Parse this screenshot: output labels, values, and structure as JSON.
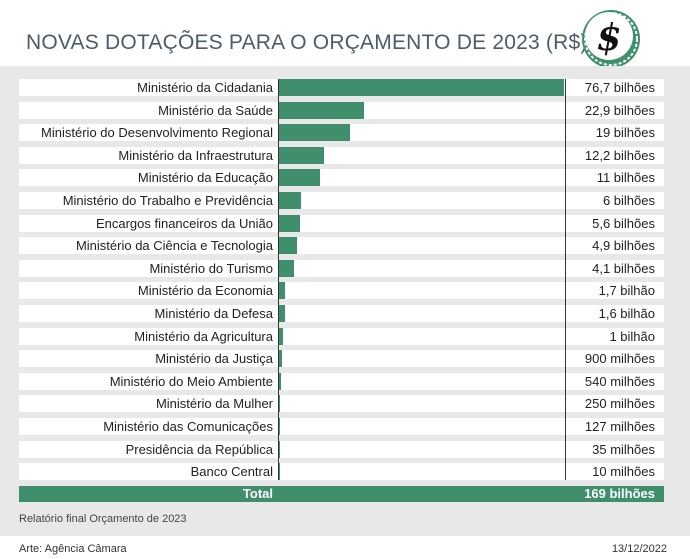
{
  "title": "NOVAS DOTAÇÕES PARA O ORÇAMENTO DE 2023 (R$)",
  "logo_glyph": "$",
  "colors": {
    "bar": "#3f8f6d",
    "title": "#4a5c6a",
    "panel": "#e8e8e8"
  },
  "chart_data": {
    "type": "bar",
    "orientation": "horizontal",
    "categories": [
      "Ministério da Cidadania",
      "Ministério da Saúde",
      "Ministério do Desenvolvimento Regional",
      "Ministério da Infraestrutura",
      "Ministério da Educação",
      "Ministério do Trabalho e Previdência",
      "Encargos financeiros da União",
      "Ministério da Ciência e Tecnologia",
      "Ministério do Turismo",
      "Ministério da Economia",
      "Ministério da Defesa",
      "Ministério da Agricultura",
      "Ministério da Justiça",
      "Ministério do Meio Ambiente",
      "Ministério da Mulher",
      "Ministério das Comunicações",
      "Presidência da República",
      "Banco Central"
    ],
    "values": [
      76.7,
      22.9,
      19,
      12.2,
      11,
      6,
      5.6,
      4.9,
      4.1,
      1.7,
      1.6,
      1,
      0.9,
      0.54,
      0.25,
      0.127,
      0.035,
      0.01
    ],
    "value_labels": [
      "76,7 bilhões",
      "22,9 bilhões",
      "19 bilhões",
      "12,2 bilhões",
      "11 bilhões",
      "6 bilhões",
      "5,6 bilhões",
      "4,9 bilhões",
      "4,1 bilhões",
      "1,7 bilhão",
      "1,6 bilhão",
      "1 bilhão",
      "900 milhões",
      "540 milhões",
      "250 milhões",
      "127 milhões",
      "35 milhões",
      "10 milhões"
    ],
    "xlim": [
      0,
      76.7
    ],
    "total": {
      "label": "Total",
      "value": 169,
      "value_label": "169 bilhões"
    }
  },
  "source": "Relatório final Orçamento de 2023",
  "footer": {
    "credit": "Arte: Agência Câmara",
    "date": "13/12/2022"
  }
}
